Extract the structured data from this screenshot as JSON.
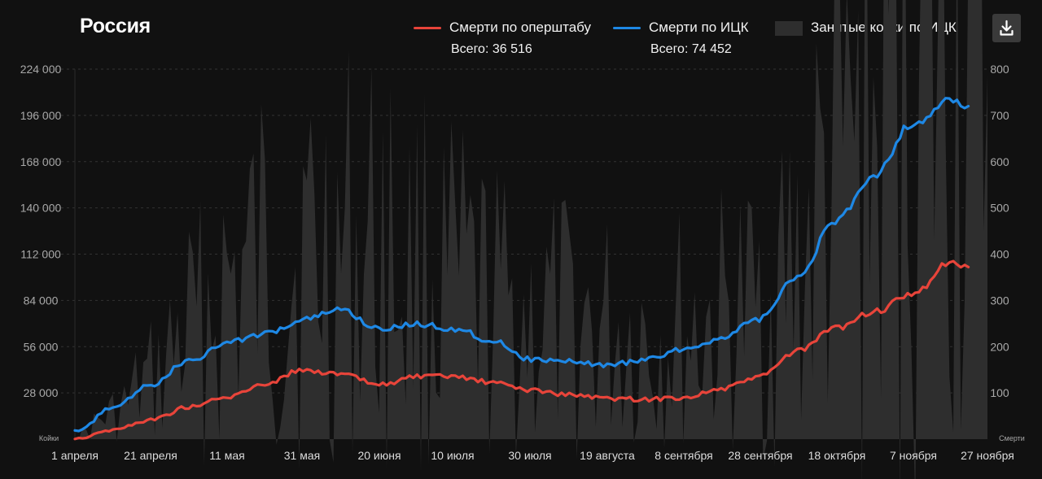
{
  "title": "Россия",
  "legend": {
    "opershtab": {
      "label": "Смерти по оперштабу",
      "total": "Всего: 36 516",
      "color": "#e8443a"
    },
    "ick": {
      "label": "Смерти по ИЦК",
      "total": "Всего: 74 452",
      "color": "#1e88e5"
    },
    "beds": {
      "label": "Занятые койки по ИЦК",
      "color": "#2e2e2e"
    }
  },
  "download": {
    "icon": "download-icon"
  },
  "chart_data": {
    "type": "line",
    "title": "Россия",
    "x_labels": [
      "1 апреля",
      "21 апреля",
      "11 мая",
      "31 мая",
      "20 июня",
      "10 июля",
      "30 июля",
      "19 августа",
      "8 сентября",
      "28 сентября",
      "18 октября",
      "7 ноября",
      "27 ноября"
    ],
    "x_range": [
      "1 апреля",
      "27 ноября"
    ],
    "left_axis": {
      "label": "Койки",
      "ticks": [
        "28 000",
        "56 000",
        "84 000",
        "112 000",
        "140 000",
        "168 000",
        "196 000",
        "224 000"
      ],
      "ylim": [
        0,
        224000
      ]
    },
    "right_axis": {
      "label": "Смерти",
      "ticks": [
        "100",
        "200",
        "300",
        "400",
        "500",
        "600",
        "700",
        "800"
      ],
      "ylim": [
        0,
        800
      ]
    },
    "grid": "horizontal-dashed",
    "series": [
      {
        "name": "Занятые койки по ИЦК",
        "type": "area",
        "axis": "left",
        "points": [
          [
            "1 апреля",
            2000
          ],
          [
            "11 апреля",
            14000
          ],
          [
            "21 апреля",
            33000
          ],
          [
            "1 мая",
            62000
          ],
          [
            "11 мая",
            88000
          ],
          [
            "21 мая",
            100000
          ],
          [
            "31 мая",
            106000
          ],
          [
            "10 июня",
            110000
          ],
          [
            "20 июня",
            110000
          ],
          [
            "30 июня",
            98000
          ],
          [
            "10 июля",
            86000
          ],
          [
            "20 июля",
            76000
          ],
          [
            "30 июля",
            70000
          ],
          [
            "9 августа",
            66000
          ],
          [
            "19 августа",
            63000
          ],
          [
            "29 августа",
            62000
          ],
          [
            "8 сентября",
            63000
          ],
          [
            "18 сентября",
            68000
          ],
          [
            "28 сентября",
            76000
          ],
          [
            "8 октября",
            100000
          ],
          [
            "18 октября",
            150000
          ],
          [
            "28 октября",
            178000
          ],
          [
            "7 ноября",
            210000
          ],
          [
            "17 ноября",
            224000
          ],
          [
            "27 ноября",
            220000
          ]
        ]
      },
      {
        "name": "Смерти по оперштабу",
        "type": "line",
        "axis": "right",
        "points": [
          [
            "1 апреля",
            2
          ],
          [
            "11 апреля",
            20
          ],
          [
            "21 апреля",
            42
          ],
          [
            "1 мая",
            70
          ],
          [
            "11 мая",
            90
          ],
          [
            "21 мая",
            120
          ],
          [
            "31 мая",
            150
          ],
          [
            "10 июня",
            140
          ],
          [
            "20 июня",
            118
          ],
          [
            "30 июня",
            135
          ],
          [
            "10 июля",
            135
          ],
          [
            "20 июля",
            122
          ],
          [
            "30 июля",
            106
          ],
          [
            "9 августа",
            96
          ],
          [
            "19 августа",
            88
          ],
          [
            "29 августа",
            86
          ],
          [
            "8 сентября",
            90
          ],
          [
            "18 сентября",
            108
          ],
          [
            "28 сентября",
            135
          ],
          [
            "8 октября",
            190
          ],
          [
            "18 октября",
            240
          ],
          [
            "28 октября",
            275
          ],
          [
            "7 ноября",
            310
          ],
          [
            "17 ноября",
            380
          ],
          [
            "22 ноября",
            372
          ]
        ]
      },
      {
        "name": "Смерти по ИЦК",
        "type": "line",
        "axis": "right",
        "points": [
          [
            "1 апреля",
            15
          ],
          [
            "11 апреля",
            68
          ],
          [
            "21 апреля",
            118
          ],
          [
            "1 мая",
            170
          ],
          [
            "11 мая",
            208
          ],
          [
            "21 мая",
            228
          ],
          [
            "31 мая",
            258
          ],
          [
            "10 июня",
            280
          ],
          [
            "20 июня",
            238
          ],
          [
            "30 июня",
            248
          ],
          [
            "10 июля",
            238
          ],
          [
            "20 июля",
            212
          ],
          [
            "30 июля",
            172
          ],
          [
            "9 августа",
            168
          ],
          [
            "19 августа",
            160
          ],
          [
            "29 августа",
            172
          ],
          [
            "8 сентября",
            195
          ],
          [
            "18 сентября",
            218
          ],
          [
            "28 сентября",
            260
          ],
          [
            "8 октября",
            350
          ],
          [
            "18 октября",
            470
          ],
          [
            "28 октября",
            570
          ],
          [
            "7 ноября",
            680
          ],
          [
            "17 ноября",
            730
          ],
          [
            "22 ноября",
            720
          ]
        ]
      }
    ]
  }
}
